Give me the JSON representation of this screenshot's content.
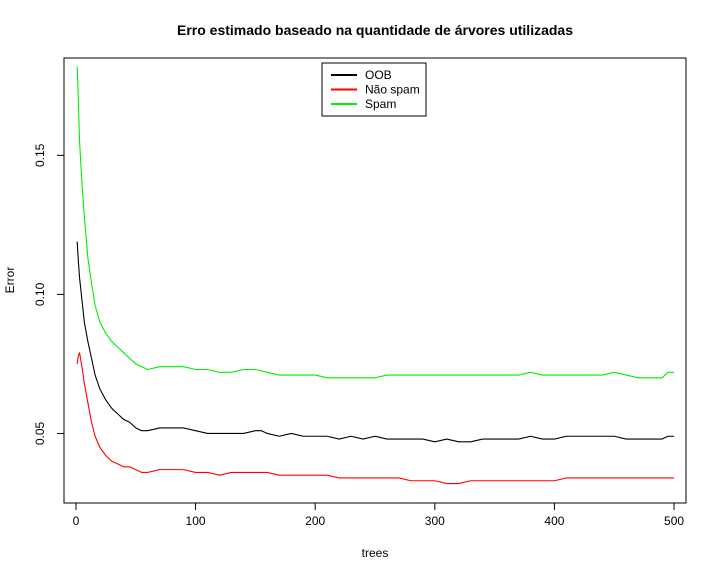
{
  "chart_data": {
    "type": "line",
    "title": "Erro estimado baseado na quantidade de árvores utilizadas",
    "xlabel": "trees",
    "ylabel": "Error",
    "xlim": [
      -10,
      510
    ],
    "ylim": [
      0.025,
      0.185
    ],
    "x_ticks": [
      0,
      100,
      200,
      300,
      400,
      500
    ],
    "y_ticks": [
      0.05,
      0.1,
      0.15
    ],
    "legend_position": "top-center",
    "grid": false,
    "series": [
      {
        "name": "OOB",
        "color": "#000000",
        "points": [
          [
            1,
            0.119
          ],
          [
            2,
            0.112
          ],
          [
            3,
            0.106
          ],
          [
            5,
            0.098
          ],
          [
            7,
            0.09
          ],
          [
            10,
            0.083
          ],
          [
            13,
            0.077
          ],
          [
            16,
            0.071
          ],
          [
            20,
            0.066
          ],
          [
            25,
            0.062
          ],
          [
            30,
            0.059
          ],
          [
            35,
            0.057
          ],
          [
            40,
            0.055
          ],
          [
            45,
            0.054
          ],
          [
            50,
            0.052
          ],
          [
            55,
            0.051
          ],
          [
            60,
            0.051
          ],
          [
            70,
            0.052
          ],
          [
            80,
            0.052
          ],
          [
            90,
            0.052
          ],
          [
            100,
            0.051
          ],
          [
            110,
            0.05
          ],
          [
            120,
            0.05
          ],
          [
            130,
            0.05
          ],
          [
            140,
            0.05
          ],
          [
            150,
            0.051
          ],
          [
            155,
            0.051
          ],
          [
            160,
            0.05
          ],
          [
            170,
            0.049
          ],
          [
            180,
            0.05
          ],
          [
            190,
            0.049
          ],
          [
            200,
            0.049
          ],
          [
            210,
            0.049
          ],
          [
            220,
            0.048
          ],
          [
            230,
            0.049
          ],
          [
            240,
            0.048
          ],
          [
            250,
            0.049
          ],
          [
            260,
            0.048
          ],
          [
            270,
            0.048
          ],
          [
            280,
            0.048
          ],
          [
            290,
            0.048
          ],
          [
            300,
            0.047
          ],
          [
            310,
            0.048
          ],
          [
            320,
            0.047
          ],
          [
            330,
            0.047
          ],
          [
            340,
            0.048
          ],
          [
            350,
            0.048
          ],
          [
            360,
            0.048
          ],
          [
            370,
            0.048
          ],
          [
            380,
            0.049
          ],
          [
            390,
            0.048
          ],
          [
            400,
            0.048
          ],
          [
            410,
            0.049
          ],
          [
            420,
            0.049
          ],
          [
            430,
            0.049
          ],
          [
            440,
            0.049
          ],
          [
            450,
            0.049
          ],
          [
            460,
            0.048
          ],
          [
            470,
            0.048
          ],
          [
            480,
            0.048
          ],
          [
            490,
            0.048
          ],
          [
            495,
            0.049
          ],
          [
            500,
            0.049
          ]
        ]
      },
      {
        "name": "Não spam",
        "color": "#ff0000",
        "points": [
          [
            1,
            0.075
          ],
          [
            2,
            0.078
          ],
          [
            3,
            0.079
          ],
          [
            5,
            0.074
          ],
          [
            7,
            0.068
          ],
          [
            10,
            0.061
          ],
          [
            13,
            0.054
          ],
          [
            16,
            0.049
          ],
          [
            20,
            0.045
          ],
          [
            25,
            0.042
          ],
          [
            30,
            0.04
          ],
          [
            35,
            0.039
          ],
          [
            40,
            0.038
          ],
          [
            45,
            0.038
          ],
          [
            50,
            0.037
          ],
          [
            55,
            0.036
          ],
          [
            60,
            0.036
          ],
          [
            70,
            0.037
          ],
          [
            80,
            0.037
          ],
          [
            90,
            0.037
          ],
          [
            100,
            0.036
          ],
          [
            110,
            0.036
          ],
          [
            120,
            0.035
          ],
          [
            130,
            0.036
          ],
          [
            140,
            0.036
          ],
          [
            150,
            0.036
          ],
          [
            160,
            0.036
          ],
          [
            170,
            0.035
          ],
          [
            180,
            0.035
          ],
          [
            190,
            0.035
          ],
          [
            200,
            0.035
          ],
          [
            210,
            0.035
          ],
          [
            220,
            0.034
          ],
          [
            230,
            0.034
          ],
          [
            240,
            0.034
          ],
          [
            250,
            0.034
          ],
          [
            260,
            0.034
          ],
          [
            270,
            0.034
          ],
          [
            280,
            0.033
          ],
          [
            290,
            0.033
          ],
          [
            300,
            0.033
          ],
          [
            310,
            0.032
          ],
          [
            320,
            0.032
          ],
          [
            330,
            0.033
          ],
          [
            340,
            0.033
          ],
          [
            350,
            0.033
          ],
          [
            360,
            0.033
          ],
          [
            370,
            0.033
          ],
          [
            380,
            0.033
          ],
          [
            390,
            0.033
          ],
          [
            400,
            0.033
          ],
          [
            410,
            0.034
          ],
          [
            420,
            0.034
          ],
          [
            430,
            0.034
          ],
          [
            440,
            0.034
          ],
          [
            450,
            0.034
          ],
          [
            460,
            0.034
          ],
          [
            470,
            0.034
          ],
          [
            480,
            0.034
          ],
          [
            490,
            0.034
          ],
          [
            500,
            0.034
          ]
        ]
      },
      {
        "name": "Spam",
        "color": "#00ee00",
        "points": [
          [
            1,
            0.182
          ],
          [
            2,
            0.17
          ],
          [
            3,
            0.155
          ],
          [
            5,
            0.14
          ],
          [
            7,
            0.128
          ],
          [
            10,
            0.113
          ],
          [
            13,
            0.104
          ],
          [
            16,
            0.096
          ],
          [
            20,
            0.09
          ],
          [
            25,
            0.086
          ],
          [
            30,
            0.083
          ],
          [
            35,
            0.081
          ],
          [
            40,
            0.079
          ],
          [
            45,
            0.077
          ],
          [
            50,
            0.075
          ],
          [
            55,
            0.074
          ],
          [
            60,
            0.073
          ],
          [
            70,
            0.074
          ],
          [
            80,
            0.074
          ],
          [
            90,
            0.074
          ],
          [
            100,
            0.073
          ],
          [
            110,
            0.073
          ],
          [
            120,
            0.072
          ],
          [
            130,
            0.072
          ],
          [
            140,
            0.073
          ],
          [
            150,
            0.073
          ],
          [
            160,
            0.072
          ],
          [
            170,
            0.071
          ],
          [
            180,
            0.071
          ],
          [
            190,
            0.071
          ],
          [
            200,
            0.071
          ],
          [
            210,
            0.07
          ],
          [
            220,
            0.07
          ],
          [
            230,
            0.07
          ],
          [
            240,
            0.07
          ],
          [
            250,
            0.07
          ],
          [
            260,
            0.071
          ],
          [
            270,
            0.071
          ],
          [
            280,
            0.071
          ],
          [
            290,
            0.071
          ],
          [
            300,
            0.071
          ],
          [
            310,
            0.071
          ],
          [
            320,
            0.071
          ],
          [
            330,
            0.071
          ],
          [
            340,
            0.071
          ],
          [
            350,
            0.071
          ],
          [
            360,
            0.071
          ],
          [
            370,
            0.071
          ],
          [
            380,
            0.072
          ],
          [
            390,
            0.071
          ],
          [
            400,
            0.071
          ],
          [
            410,
            0.071
          ],
          [
            420,
            0.071
          ],
          [
            430,
            0.071
          ],
          [
            440,
            0.071
          ],
          [
            450,
            0.072
          ],
          [
            460,
            0.071
          ],
          [
            470,
            0.07
          ],
          [
            480,
            0.07
          ],
          [
            490,
            0.07
          ],
          [
            495,
            0.072
          ],
          [
            500,
            0.072
          ]
        ]
      }
    ]
  }
}
